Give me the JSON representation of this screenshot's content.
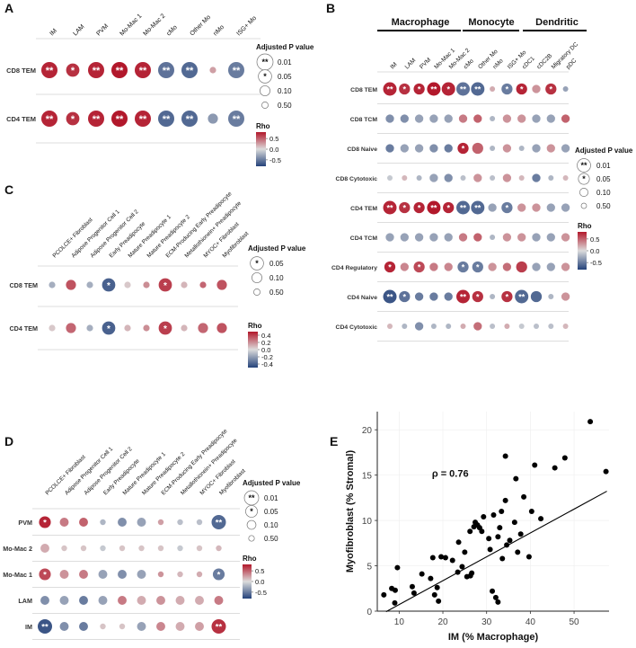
{
  "colors": {
    "high": "#b2182b",
    "mid": "#dcdcdc",
    "low": "#24427a",
    "text": "#111111",
    "grid": "#bbbbbb"
  },
  "legend_labels": {
    "padj_title": "Adjusted P value",
    "rho_title": "Rho",
    "p_001": "0.01",
    "p_005": "0.05",
    "p_010": "0.10",
    "p_050": "0.50"
  },
  "chart_data": [
    {
      "panel": "A",
      "type": "dotplot",
      "columns": [
        "IM",
        "LAM",
        "PVM",
        "Mo-Mac 1",
        "Mo-Mac 2",
        "cMo",
        "Other Mo",
        "nMo",
        "ISG+ Mo"
      ],
      "rows": [
        "CD8 TEM",
        "CD4 TEM"
      ],
      "rho": [
        [
          0.75,
          0.7,
          0.75,
          0.8,
          0.75,
          -0.55,
          -0.6,
          0.25,
          -0.5
        ],
        [
          0.75,
          0.7,
          0.75,
          0.8,
          0.75,
          -0.6,
          -0.6,
          -0.35,
          -0.5
        ]
      ],
      "size": [
        [
          0.01,
          0.05,
          0.01,
          0.01,
          0.01,
          0.01,
          0.01,
          0.5,
          0.01
        ],
        [
          0.01,
          0.05,
          0.01,
          0.01,
          0.01,
          0.01,
          0.01,
          0.1,
          0.01
        ]
      ],
      "stars": [
        [
          "**",
          "*",
          "**",
          "**",
          "**",
          "**",
          "**",
          "",
          "**"
        ],
        [
          "**",
          "*",
          "**",
          "**",
          "**",
          "**",
          "**",
          "",
          "**"
        ]
      ],
      "rho_ticks": [
        "0.5",
        "0.0",
        "-0.5"
      ]
    },
    {
      "panel": "B",
      "type": "dotplot",
      "groups": [
        "Macrophage",
        "Monocyte",
        "Dendritic"
      ],
      "columns": [
        "IM",
        "LAM",
        "PVM",
        "Mo-Mac 1",
        "Mo-Mac 2",
        "cMo",
        "Other Mo",
        "nMo",
        "ISG+ Mo",
        "cDC1",
        "cDC2B",
        "Migratory DC",
        "pDC"
      ],
      "rows": [
        "CD8 TEM",
        "CD8 TCM",
        "CD8 Naive",
        "CD8 Cytotoxic",
        "CD4 TEM",
        "CD4 TCM",
        "CD4 Regulatory",
        "CD4 Naive",
        "CD4 Cytotoxic"
      ],
      "rho": [
        [
          0.75,
          0.7,
          0.75,
          0.8,
          0.75,
          -0.55,
          -0.6,
          0.2,
          -0.5,
          0.75,
          0.3,
          0.7,
          -0.3
        ],
        [
          -0.4,
          -0.4,
          -0.3,
          -0.3,
          -0.3,
          0.4,
          0.5,
          -0.2,
          0.3,
          0.3,
          -0.3,
          -0.3,
          0.5
        ],
        [
          -0.5,
          -0.3,
          -0.3,
          -0.4,
          -0.5,
          0.75,
          0.5,
          -0.2,
          0.3,
          -0.2,
          -0.3,
          0.3,
          -0.3
        ],
        [
          -0.1,
          0.15,
          -0.2,
          -0.3,
          -0.4,
          -0.15,
          0.3,
          -0.15,
          0.3,
          0.15,
          -0.5,
          -0.2,
          0.15
        ],
        [
          0.75,
          0.7,
          0.75,
          0.8,
          0.75,
          -0.6,
          -0.6,
          -0.3,
          -0.5,
          0.3,
          0.3,
          -0.3,
          -0.3
        ],
        [
          -0.3,
          -0.3,
          -0.3,
          -0.3,
          -0.3,
          0.4,
          0.5,
          -0.2,
          0.3,
          0.3,
          -0.3,
          -0.3,
          0.3
        ],
        [
          0.75,
          0.35,
          0.6,
          0.4,
          0.35,
          -0.5,
          -0.5,
          0.3,
          0.45,
          0.65,
          -0.3,
          -0.3,
          0.3
        ],
        [
          -0.7,
          -0.55,
          -0.5,
          -0.5,
          -0.5,
          0.75,
          0.7,
          -0.2,
          0.7,
          -0.6,
          -0.6,
          -0.2,
          0.3
        ],
        [
          0.15,
          -0.2,
          -0.4,
          -0.2,
          -0.2,
          0.2,
          0.45,
          -0.15,
          0.2,
          -0.1,
          -0.15,
          -0.15,
          0.15
        ]
      ],
      "size": [
        [
          0.01,
          0.05,
          0.05,
          0.01,
          0.01,
          0.01,
          0.01,
          0.5,
          0.05,
          0.05,
          0.1,
          0.05,
          0.5
        ],
        [
          0.1,
          0.1,
          0.1,
          0.1,
          0.1,
          0.1,
          0.1,
          0.5,
          0.1,
          0.1,
          0.1,
          0.1,
          0.1
        ],
        [
          0.1,
          0.1,
          0.1,
          0.1,
          0.1,
          0.05,
          0.05,
          0.5,
          0.1,
          0.5,
          0.1,
          0.1,
          0.1
        ],
        [
          0.5,
          0.5,
          0.5,
          0.1,
          0.1,
          0.5,
          0.1,
          0.5,
          0.1,
          0.5,
          0.1,
          0.5,
          0.5
        ],
        [
          0.01,
          0.05,
          0.05,
          0.01,
          0.05,
          0.01,
          0.01,
          0.1,
          0.05,
          0.1,
          0.1,
          0.1,
          0.1
        ],
        [
          0.1,
          0.1,
          0.1,
          0.1,
          0.1,
          0.1,
          0.1,
          0.5,
          0.1,
          0.1,
          0.1,
          0.1,
          0.1
        ],
        [
          0.05,
          0.1,
          0.05,
          0.1,
          0.1,
          0.05,
          0.05,
          0.1,
          0.1,
          0.05,
          0.1,
          0.1,
          0.1
        ],
        [
          0.01,
          0.05,
          0.1,
          0.1,
          0.1,
          0.01,
          0.05,
          0.5,
          0.05,
          0.01,
          0.05,
          0.5,
          0.1
        ],
        [
          0.5,
          0.5,
          0.1,
          0.5,
          0.5,
          0.5,
          0.1,
          0.5,
          0.5,
          0.5,
          0.5,
          0.5,
          0.5
        ]
      ],
      "stars": [
        [
          "**",
          "*",
          "*",
          "**",
          "*",
          "**",
          "**",
          "",
          "*",
          "*",
          "",
          "*",
          ""
        ],
        [
          "",
          "",
          "",
          "",
          "",
          "",
          "",
          "",
          "",
          "",
          "",
          "",
          ""
        ],
        [
          "",
          "",
          "",
          "",
          "",
          "*",
          "",
          "",
          "",
          "",
          "",
          "",
          ""
        ],
        [
          "",
          "",
          "",
          "",
          "",
          "",
          "",
          "",
          "",
          "",
          "",
          "",
          ""
        ],
        [
          "**",
          "*",
          "*",
          "**",
          "*",
          "**",
          "**",
          "",
          "*",
          "",
          "",
          "",
          ""
        ],
        [
          "",
          "",
          "",
          "",
          "",
          "",
          "",
          "",
          "",
          "",
          "",
          "",
          ""
        ],
        [
          "*",
          "",
          "*",
          "",
          "",
          "*",
          "*",
          "",
          "",
          "",
          "",
          "",
          ""
        ],
        [
          "**",
          "*",
          "",
          "",
          "",
          "**",
          "*",
          "",
          "*",
          "**",
          "",
          "",
          ""
        ],
        [
          "",
          "",
          "",
          "",
          "",
          "",
          "",
          "",
          "",
          "",
          "",
          "",
          ""
        ]
      ],
      "rho_ticks": [
        "0.5",
        "0.0",
        "-0.5"
      ]
    },
    {
      "panel": "C",
      "type": "dotplot",
      "columns": [
        "PCOLCE+ Fibroblast",
        "Adipose Progenitor Cell 1",
        "Adipose Progenitor Cell 2",
        "Early Preadipocyte",
        "Mature Preadipocyte 1",
        "Mature Preadipocyte 2",
        "ECM-Producing Early Preadipocyte",
        "Metallothionein+ Preadipocyte",
        "MYOC+ Fibroblast",
        "Myofibroblast"
      ],
      "rows": [
        "CD8 TEM",
        "CD4 TEM"
      ],
      "rho": [
        [
          -0.15,
          0.35,
          -0.15,
          -0.4,
          0.05,
          0.2,
          0.4,
          0.1,
          0.3,
          0.35
        ],
        [
          0.05,
          0.3,
          -0.15,
          -0.4,
          0.1,
          0.2,
          0.4,
          0.1,
          0.3,
          0.35
        ]
      ],
      "size": [
        [
          0.5,
          0.1,
          0.5,
          0.05,
          0.5,
          0.5,
          0.05,
          0.5,
          0.5,
          0.1
        ],
        [
          0.5,
          0.1,
          0.5,
          0.05,
          0.5,
          0.5,
          0.05,
          0.5,
          0.1,
          0.1
        ]
      ],
      "stars": [
        [
          "",
          "",
          "",
          "*",
          "",
          "",
          "*",
          "",
          "",
          ""
        ],
        [
          "",
          "",
          "",
          "*",
          "",
          "",
          "*",
          "",
          "",
          ""
        ]
      ],
      "rho_ticks": [
        "0.4",
        "0.2",
        "0.0",
        "-0.2",
        "-0.4"
      ]
    },
    {
      "panel": "D",
      "type": "dotplot",
      "columns": [
        "PCOLCE+ Fibroblast",
        "Adipose Progenitor Cell 1",
        "Adipose Progenitor Cell 2",
        "Early Preadipocyte",
        "Mature Preadipocyte 1",
        "Mature Preadipocyte 2",
        "ECM-Producing Early Preadipocyte",
        "Metallothionein+ Preadipocyte",
        "MYOC+ Fibroblast",
        "Myofibroblast"
      ],
      "rows": [
        "PVM",
        "Mo-Mac 2",
        "Mo-Mac 1",
        "LAM",
        "IM"
      ],
      "rho": [
        [
          0.75,
          0.4,
          0.5,
          -0.2,
          -0.4,
          -0.3,
          0.25,
          -0.15,
          -0.15,
          -0.6
        ],
        [
          0.2,
          0.1,
          0.1,
          -0.1,
          0.1,
          0.1,
          0.1,
          -0.1,
          0.1,
          0.15
        ],
        [
          0.6,
          0.3,
          0.4,
          -0.3,
          -0.4,
          -0.3,
          0.3,
          0.15,
          0.2,
          -0.5
        ],
        [
          -0.4,
          -0.3,
          -0.5,
          -0.3,
          0.4,
          0.2,
          0.3,
          0.2,
          0.2,
          0.4
        ],
        [
          -0.7,
          -0.4,
          -0.5,
          0.1,
          0.1,
          -0.3,
          0.35,
          0.2,
          0.25,
          0.7
        ]
      ],
      "size": [
        [
          0.05,
          0.1,
          0.1,
          0.5,
          0.1,
          0.1,
          0.5,
          0.5,
          0.5,
          0.01
        ],
        [
          0.1,
          0.5,
          0.5,
          0.5,
          0.5,
          0.5,
          0.5,
          0.5,
          0.5,
          0.5
        ],
        [
          0.05,
          0.1,
          0.1,
          0.1,
          0.1,
          0.1,
          0.5,
          0.5,
          0.5,
          0.05
        ],
        [
          0.1,
          0.1,
          0.1,
          0.1,
          0.1,
          0.1,
          0.1,
          0.1,
          0.1,
          0.1
        ],
        [
          0.01,
          0.1,
          0.1,
          0.5,
          0.5,
          0.1,
          0.1,
          0.1,
          0.1,
          0.01
        ]
      ],
      "stars": [
        [
          "*",
          "",
          "",
          "",
          "",
          "",
          "",
          "",
          "",
          "**"
        ],
        [
          "",
          "",
          "",
          "",
          "",
          "",
          "",
          "",
          "",
          ""
        ],
        [
          "*",
          "",
          "",
          "",
          "",
          "",
          "",
          "",
          "",
          "*"
        ],
        [
          "",
          "",
          "",
          "",
          "",
          "",
          "",
          "",
          "",
          ""
        ],
        [
          "**",
          "",
          "",
          "",
          "",
          "",
          "",
          "",
          "",
          "**"
        ]
      ],
      "rho_ticks": [
        "0.5",
        "0.0",
        "-0.5"
      ]
    },
    {
      "panel": "E",
      "type": "scatter",
      "xlabel": "IM (% Macrophage)",
      "ylabel": "Myofibroblast (% Stromal)",
      "xlim": [
        5,
        58
      ],
      "ylim": [
        0,
        22
      ],
      "xticks": [
        10,
        20,
        30,
        40,
        50
      ],
      "yticks": [
        0,
        5,
        10,
        15,
        20
      ],
      "annotation": "ρ = 0.76",
      "fit": {
        "slope": 0.263,
        "intercept": -1.9
      },
      "points": [
        [
          6.5,
          1.8
        ],
        [
          8.3,
          2.5
        ],
        [
          9.1,
          2.3
        ],
        [
          9.6,
          4.8
        ],
        [
          9.0,
          0.9
        ],
        [
          13.0,
          2.7
        ],
        [
          13.4,
          2.0
        ],
        [
          15.2,
          4.1
        ],
        [
          17.2,
          3.6
        ],
        [
          17.7,
          5.9
        ],
        [
          18.1,
          1.8
        ],
        [
          19.0,
          1.1
        ],
        [
          19.6,
          6.0
        ],
        [
          18.7,
          2.6
        ],
        [
          20.6,
          5.9
        ],
        [
          22.2,
          5.6
        ],
        [
          23.6,
          7.6
        ],
        [
          23.4,
          4.3
        ],
        [
          24.4,
          4.9
        ],
        [
          25.0,
          6.5
        ],
        [
          25.5,
          3.8
        ],
        [
          26.2,
          8.8
        ],
        [
          26.6,
          4.2
        ],
        [
          27.1,
          9.3
        ],
        [
          27.4,
          9.8
        ],
        [
          27.9,
          9.5
        ],
        [
          28.4,
          9.2
        ],
        [
          28.9,
          8.8
        ],
        [
          29.3,
          10.4
        ],
        [
          30.5,
          8.0
        ],
        [
          30.8,
          6.8
        ],
        [
          31.6,
          10.6
        ],
        [
          31.3,
          2.2
        ],
        [
          32.1,
          1.5
        ],
        [
          32.6,
          1.0
        ],
        [
          32.6,
          8.2
        ],
        [
          33.0,
          9.2
        ],
        [
          33.4,
          11.0
        ],
        [
          33.6,
          5.8
        ],
        [
          34.3,
          12.2
        ],
        [
          34.3,
          17.1
        ],
        [
          34.6,
          7.3
        ],
        [
          35.3,
          7.8
        ],
        [
          36.4,
          9.8
        ],
        [
          36.7,
          14.6
        ],
        [
          37.1,
          6.5
        ],
        [
          37.8,
          8.5
        ],
        [
          38.5,
          12.6
        ],
        [
          39.7,
          6.0
        ],
        [
          40.3,
          11.0
        ],
        [
          41.0,
          16.1
        ],
        [
          42.4,
          10.2
        ],
        [
          45.6,
          15.8
        ],
        [
          47.9,
          16.9
        ],
        [
          53.7,
          20.9
        ],
        [
          57.3,
          15.4
        ],
        [
          26.3,
          3.9
        ]
      ]
    }
  ]
}
